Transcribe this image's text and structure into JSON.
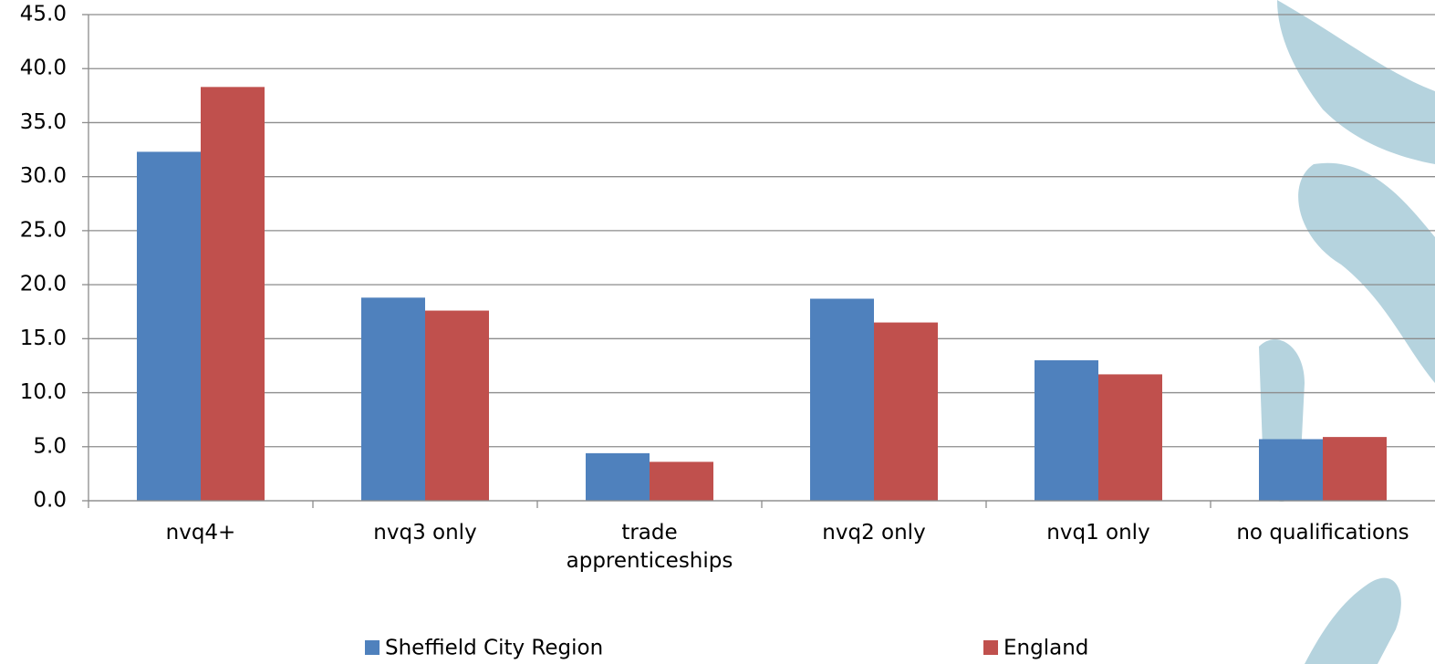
{
  "chart_data": {
    "type": "bar",
    "categories": [
      "nvq4+",
      "nvq3 only",
      "trade apprenticeships",
      "nvq2 only",
      "nvq1 only",
      "no qualifications"
    ],
    "series": [
      {
        "name": "Sheffield City Region",
        "color": "#4f81bd",
        "values": [
          32.3,
          18.8,
          4.4,
          18.7,
          13.0,
          5.7
        ]
      },
      {
        "name": "England",
        "color": "#c0504d",
        "values": [
          38.3,
          17.6,
          3.6,
          16.5,
          11.7,
          5.9
        ]
      }
    ],
    "ylim": [
      0,
      45
    ],
    "yticks": [
      {
        "value": 0,
        "label": "0.0"
      },
      {
        "value": 5,
        "label": "5.0"
      },
      {
        "value": 10,
        "label": "10.0"
      },
      {
        "value": 15,
        "label": "15.0"
      },
      {
        "value": 20,
        "label": "20.0"
      },
      {
        "value": 25,
        "label": "25.0"
      },
      {
        "value": 30,
        "label": "30.0"
      },
      {
        "value": 35,
        "label": "35.0"
      },
      {
        "value": 40,
        "label": "40.0"
      },
      {
        "value": 45,
        "label": "45.0"
      }
    ],
    "grid": true,
    "legend": "bottom"
  }
}
